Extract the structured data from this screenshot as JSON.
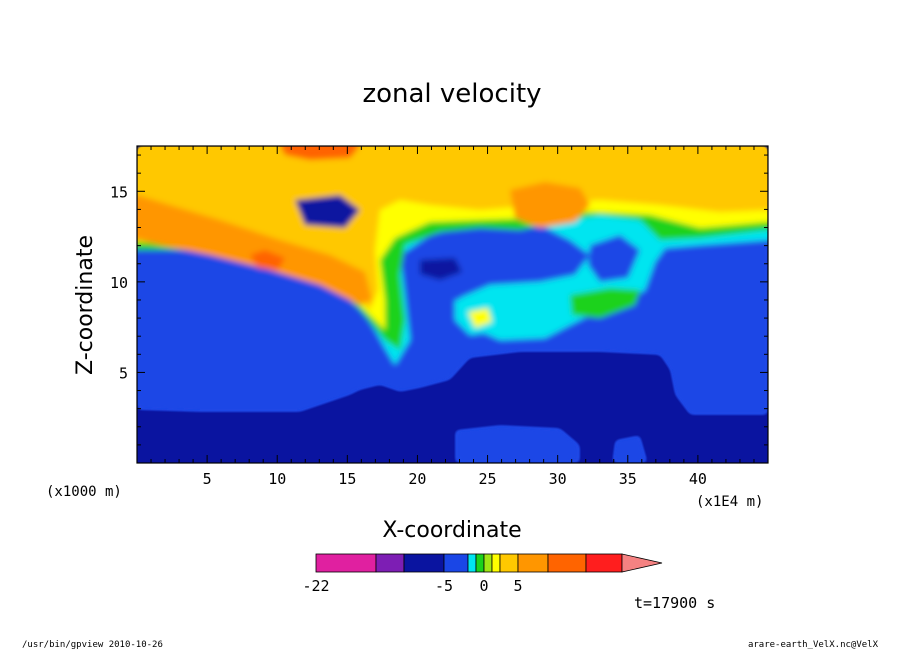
{
  "chart_data": {
    "type": "heatmap",
    "title": "zonal velocity",
    "xlabel": "X-coordinate",
    "ylabel": "Z-coordinate",
    "x_unit_left": "(x1000 m)",
    "x_unit_right": "(x1E4 m)",
    "xlim": [
      0,
      45
    ],
    "ylim": [
      0,
      17.5
    ],
    "x_ticks": [
      "5",
      "10",
      "15",
      "20",
      "25",
      "30",
      "35",
      "40"
    ],
    "y_ticks": [
      "5",
      "10",
      "15"
    ],
    "x_tick_values": [
      5,
      10,
      15,
      20,
      25,
      30,
      35,
      40
    ],
    "y_tick_values": [
      5,
      10,
      15
    ],
    "colorbar": {
      "labels": [
        "-22",
        "-5",
        "0",
        "5"
      ],
      "label_values": [
        -22,
        -5,
        0,
        5
      ],
      "min": -22,
      "levels": [
        -22,
        -14,
        -11,
        -5,
        -2,
        -1,
        0,
        1,
        2,
        5,
        8,
        11,
        14
      ],
      "colors": [
        "#e020a0",
        "#7d1eb4",
        "#0a14a0",
        "#1a46e6",
        "#00e5f0",
        "#1bd21b",
        "#a0e614",
        "#ffff00",
        "#ffc800",
        "#ff9600",
        "#ff6400",
        "#ff1e1e"
      ],
      "extend_color": "#f58282"
    },
    "annotation": "t=17900 s"
  },
  "footer": {
    "left": "/usr/bin/gpview  2010-10-26",
    "right": "arare-earth_VelX.nc@VelX"
  }
}
